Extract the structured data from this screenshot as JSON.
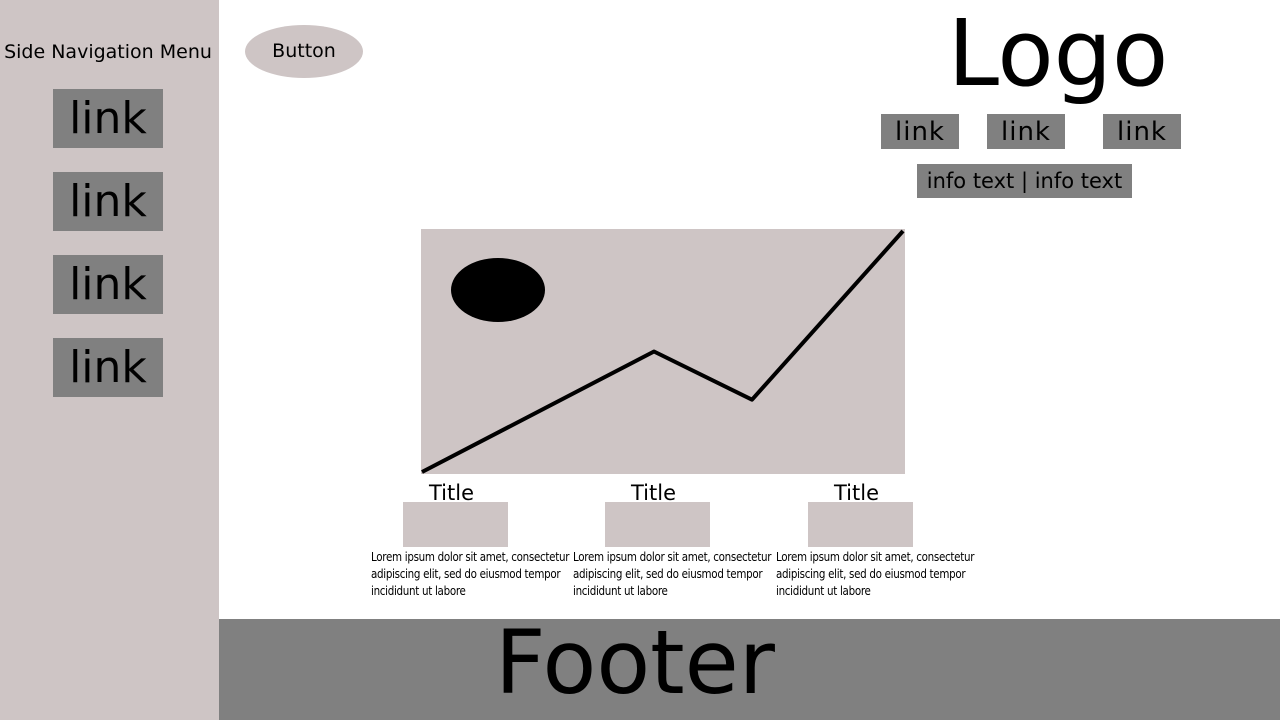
{
  "sidebar": {
    "title": "Side Navigation Menu",
    "links": [
      "link",
      "link",
      "link",
      "link"
    ]
  },
  "header": {
    "button_label": "Button",
    "logo": "Logo",
    "links": [
      "link",
      "link",
      "link"
    ],
    "info_text": "info text | info text"
  },
  "hero": {
    "image_icon": "sun-over-line-graph-image",
    "trend": [
      0.0,
      0.5,
      0.3,
      1.0
    ]
  },
  "cards": [
    {
      "title": "Title",
      "text": "Lorem ipsum dolor sit amet, consectetur adipiscing elit, sed do eiusmod tempor incididunt ut labore"
    },
    {
      "title": "Title",
      "text": "Lorem ipsum dolor sit amet, consectetur adipiscing elit, sed do eiusmod tempor incididunt ut labore"
    },
    {
      "title": "Title",
      "text": "Lorem ipsum dolor sit amet, consectetur adipiscing elit, sed do eiusmod tempor incididunt ut labore"
    }
  ],
  "footer": {
    "label": "Footer"
  },
  "colors": {
    "panel": "#cec5c5",
    "link_bg": "#808080",
    "background": "#ffffff",
    "ink": "#000000"
  }
}
